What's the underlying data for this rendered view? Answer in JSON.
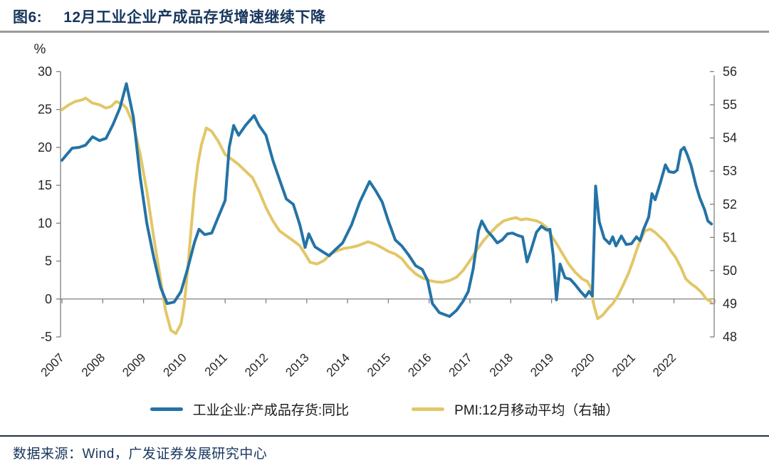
{
  "header": {
    "figure_label": "图6:",
    "title": "12月工业企业产成品存货增速继续下降"
  },
  "footer": {
    "source": "数据来源：Wind，广发证券发展研究中心"
  },
  "colors": {
    "inventory_line": "#2473a6",
    "pmi_line": "#e2c768",
    "axis": "#808080",
    "tick_text": "#262626",
    "title_navy": "#17365d"
  },
  "chart_data": {
    "type": "line",
    "title": "12月工业企业产成品存货增速继续下降",
    "grid": false,
    "legend_position": "bottom",
    "left_axis": {
      "unit": "%",
      "ticks": [
        30,
        25,
        20,
        15,
        10,
        5,
        0,
        -5
      ],
      "range": [
        -5,
        30
      ]
    },
    "right_axis": {
      "ticks": [
        56,
        55,
        54,
        53,
        52,
        51,
        50,
        49,
        48
      ],
      "range": [
        48,
        56
      ]
    },
    "x_axis": {
      "labels": [
        "2007",
        "2008",
        "2009",
        "2010",
        "2011",
        "2012",
        "2013",
        "2014",
        "2015",
        "2016",
        "2017",
        "2018",
        "2019",
        "2020",
        "2021",
        "2022"
      ],
      "range": [
        2007,
        2023
      ]
    },
    "series": [
      {
        "name": "工业企业:产成品存货:同比",
        "axis": "left",
        "color": "#2473a6",
        "x": [
          2007.0,
          2007.25,
          2007.42,
          2007.58,
          2007.75,
          2007.92,
          2008.08,
          2008.25,
          2008.42,
          2008.58,
          2008.75,
          2008.92,
          2009.08,
          2009.25,
          2009.42,
          2009.58,
          2009.75,
          2009.92,
          2010.08,
          2010.25,
          2010.36,
          2010.5,
          2010.67,
          2010.83,
          2011.0,
          2011.1,
          2011.21,
          2011.33,
          2011.5,
          2011.71,
          2011.83,
          2012.0,
          2012.17,
          2012.33,
          2012.5,
          2012.67,
          2012.83,
          2012.96,
          2013.05,
          2013.2,
          2013.4,
          2013.55,
          2013.7,
          2013.88,
          2014.1,
          2014.3,
          2014.54,
          2014.7,
          2014.85,
          2015.0,
          2015.17,
          2015.33,
          2015.5,
          2015.67,
          2015.83,
          2015.96,
          2016.08,
          2016.25,
          2016.5,
          2016.67,
          2016.83,
          2016.96,
          2017.08,
          2017.21,
          2017.29,
          2017.42,
          2017.54,
          2017.67,
          2017.79,
          2017.92,
          2018.04,
          2018.17,
          2018.29,
          2018.4,
          2018.5,
          2018.63,
          2018.75,
          2018.88,
          2018.96,
          2019.04,
          2019.12,
          2019.21,
          2019.33,
          2019.46,
          2019.58,
          2019.71,
          2019.83,
          2019.92,
          2020.0,
          2020.08,
          2020.17,
          2020.29,
          2020.42,
          2020.5,
          2020.58,
          2020.71,
          2020.83,
          2020.96,
          2021.08,
          2021.17,
          2021.25,
          2021.38,
          2021.46,
          2021.54,
          2021.67,
          2021.79,
          2021.88,
          2022.0,
          2022.08,
          2022.17,
          2022.25,
          2022.33,
          2022.42,
          2022.54,
          2022.63,
          2022.75,
          2022.83,
          2022.92
        ],
        "y": [
          18.3,
          19.9,
          20.0,
          20.3,
          21.4,
          20.9,
          21.2,
          23.0,
          25.2,
          28.4,
          24.0,
          16.0,
          10.0,
          5.5,
          1.5,
          -0.6,
          -0.4,
          1.0,
          4.0,
          7.5,
          9.2,
          8.5,
          8.7,
          10.8,
          13.0,
          20.0,
          22.9,
          21.6,
          22.9,
          24.2,
          22.9,
          21.6,
          18.3,
          15.8,
          13.2,
          12.5,
          9.8,
          6.8,
          8.6,
          6.9,
          6.2,
          5.7,
          6.5,
          7.4,
          9.8,
          12.8,
          15.5,
          14.2,
          12.8,
          10.3,
          7.8,
          7.0,
          5.8,
          4.4,
          3.9,
          2.5,
          -0.6,
          -1.8,
          -2.3,
          -1.5,
          -0.3,
          1.0,
          4.0,
          9.0,
          10.3,
          9.0,
          8.3,
          7.4,
          7.8,
          8.6,
          8.7,
          8.4,
          8.2,
          4.9,
          6.5,
          8.8,
          9.6,
          9.1,
          9.2,
          5.8,
          -0.1,
          4.6,
          2.8,
          2.6,
          1.9,
          1.0,
          0.3,
          1.0,
          0.4,
          14.9,
          10.2,
          8.0,
          7.3,
          8.2,
          7.0,
          8.3,
          7.2,
          7.3,
          8.2,
          7.7,
          9.1,
          10.8,
          13.9,
          13.1,
          15.4,
          17.7,
          16.8,
          16.7,
          17.0,
          19.6,
          20.0,
          19.0,
          17.6,
          15.0,
          13.4,
          11.8,
          10.3,
          9.9
        ]
      },
      {
        "name": "PMI:12月移动平均（右轴）",
        "axis": "right",
        "color": "#e2c768",
        "x": [
          2007.0,
          2007.17,
          2007.33,
          2007.5,
          2007.58,
          2007.75,
          2007.92,
          2008.08,
          2008.21,
          2008.33,
          2008.5,
          2008.58,
          2008.75,
          2008.92,
          2009.08,
          2009.25,
          2009.42,
          2009.54,
          2009.67,
          2009.79,
          2009.92,
          2010.0,
          2010.08,
          2010.17,
          2010.25,
          2010.33,
          2010.42,
          2010.54,
          2010.67,
          2010.83,
          2011.0,
          2011.17,
          2011.33,
          2011.5,
          2011.67,
          2011.83,
          2012.0,
          2012.17,
          2012.33,
          2012.5,
          2012.67,
          2012.83,
          2012.96,
          2013.08,
          2013.25,
          2013.42,
          2013.58,
          2013.75,
          2013.92,
          2014.08,
          2014.25,
          2014.5,
          2014.67,
          2014.83,
          2015.0,
          2015.17,
          2015.33,
          2015.5,
          2015.67,
          2015.83,
          2016.0,
          2016.17,
          2016.33,
          2016.5,
          2016.67,
          2016.83,
          2017.0,
          2017.17,
          2017.33,
          2017.5,
          2017.67,
          2017.83,
          2018.0,
          2018.13,
          2018.25,
          2018.38,
          2018.5,
          2018.63,
          2018.75,
          2018.88,
          2019.0,
          2019.13,
          2019.25,
          2019.42,
          2019.58,
          2019.75,
          2019.88,
          2019.96,
          2020.04,
          2020.13,
          2020.25,
          2020.38,
          2020.5,
          2020.63,
          2020.75,
          2020.88,
          2021.0,
          2021.08,
          2021.17,
          2021.29,
          2021.42,
          2021.54,
          2021.67,
          2021.79,
          2021.92,
          2022.04,
          2022.17,
          2022.29,
          2022.42,
          2022.54,
          2022.67,
          2022.79,
          2022.92
        ],
        "y": [
          54.85,
          55.0,
          55.1,
          55.15,
          55.2,
          55.05,
          55.0,
          54.9,
          54.95,
          55.1,
          55.0,
          54.9,
          54.4,
          53.5,
          52.4,
          51.0,
          49.7,
          48.8,
          48.2,
          48.1,
          48.4,
          49.0,
          50.0,
          51.3,
          52.4,
          53.2,
          53.8,
          54.3,
          54.2,
          53.9,
          53.5,
          53.35,
          53.2,
          53.0,
          52.8,
          52.4,
          51.9,
          51.5,
          51.2,
          51.05,
          50.9,
          50.75,
          50.5,
          50.25,
          50.2,
          50.3,
          50.5,
          50.6,
          50.67,
          50.7,
          50.75,
          50.87,
          50.8,
          50.7,
          50.58,
          50.5,
          50.36,
          50.1,
          49.9,
          49.78,
          49.7,
          49.66,
          49.65,
          49.7,
          49.8,
          50.0,
          50.3,
          50.62,
          50.9,
          51.13,
          51.35,
          51.5,
          51.56,
          51.6,
          51.53,
          51.56,
          51.53,
          51.5,
          51.43,
          51.3,
          51.05,
          50.8,
          50.55,
          50.2,
          49.95,
          49.75,
          49.67,
          49.5,
          48.95,
          48.55,
          48.65,
          48.85,
          49.0,
          49.25,
          49.55,
          49.9,
          50.3,
          50.6,
          50.9,
          51.2,
          51.25,
          51.15,
          51.0,
          50.85,
          50.6,
          50.4,
          50.1,
          49.75,
          49.6,
          49.5,
          49.35,
          49.15,
          49.05
        ]
      }
    ]
  }
}
